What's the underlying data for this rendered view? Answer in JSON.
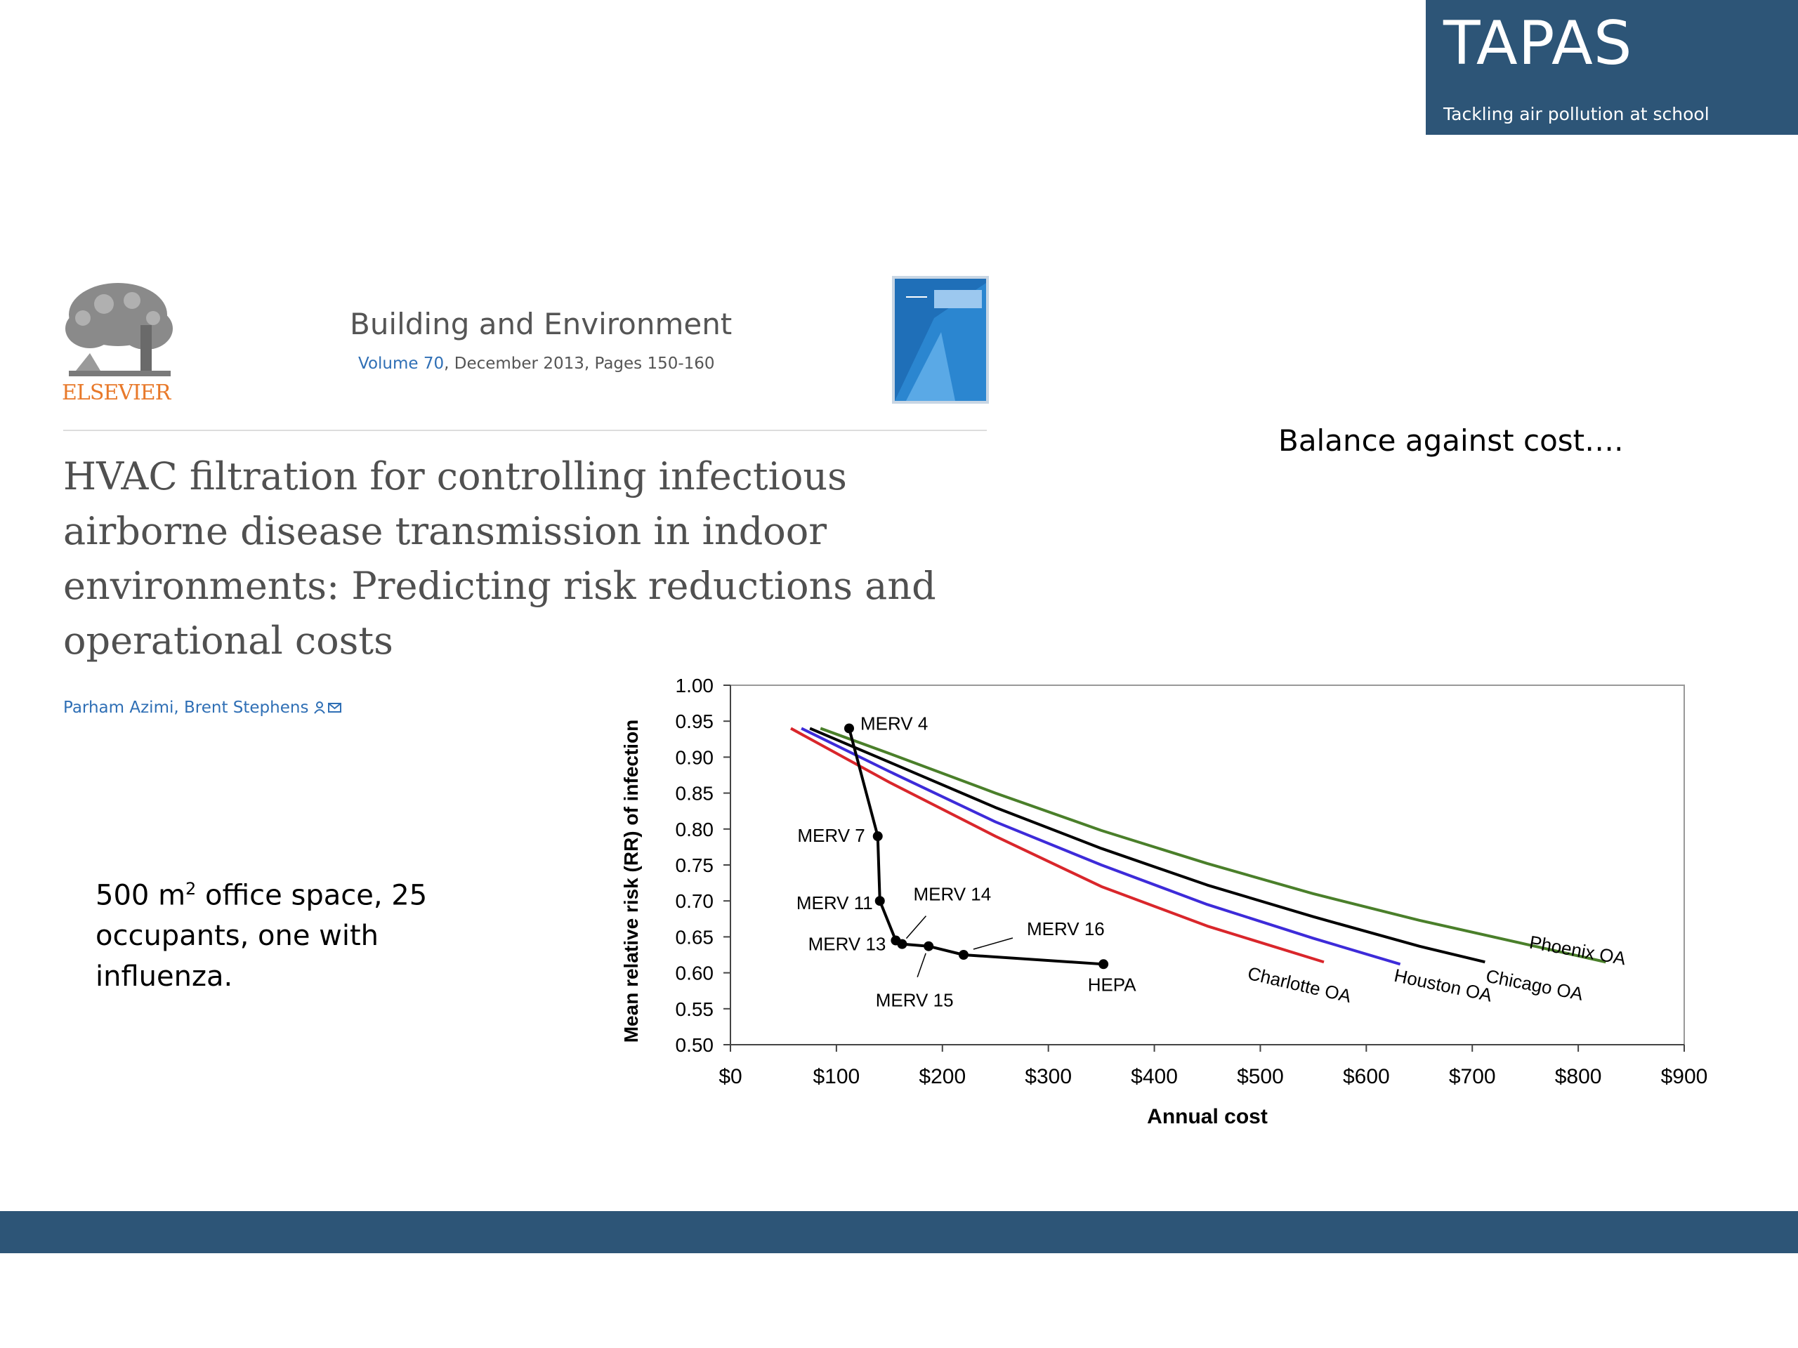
{
  "brand": {
    "name": "TAPAS",
    "tagline": "Tackling air pollution at school",
    "color": "#2d5577"
  },
  "publisher": {
    "logo_text": "ELSEVIER"
  },
  "journal": {
    "name": "Building and Environment",
    "volume_link": "Volume 70",
    "citation_rest": ", December 2013, Pages 150-160"
  },
  "paper": {
    "title": "HVAC filtration for controlling infectious airborne disease transmission in indoor environments: Predicting risk reductions and operational costs",
    "authors": "Parham Azimi, Brent Stephens"
  },
  "notes": {
    "balance": "Balance against cost….",
    "scenario_part1": "500 m",
    "scenario_sup": "2",
    "scenario_part2": " office space, 25 occupants, one with influenza."
  },
  "chart_data": {
    "type": "line",
    "xlabel": "Annual cost",
    "ylabel": "Mean relative risk (RR) of infection",
    "xlim": [
      0,
      900
    ],
    "ylim": [
      0.5,
      1.0
    ],
    "x_ticks": [
      "$0",
      "$100",
      "$200",
      "$300",
      "$400",
      "$500",
      "$600",
      "$700",
      "$800",
      "$900"
    ],
    "y_ticks": [
      "1.00",
      "0.95",
      "0.90",
      "0.85",
      "0.80",
      "0.75",
      "0.70",
      "0.65",
      "0.60",
      "0.55",
      "0.50"
    ],
    "filters": {
      "name": "",
      "color": "#000000",
      "points": [
        {
          "label": "MERV 4",
          "x": 112,
          "y": 0.94
        },
        {
          "label": "MERV 7",
          "x": 139,
          "y": 0.79
        },
        {
          "label": "MERV 11",
          "x": 141,
          "y": 0.7
        },
        {
          "label": "MERV 13",
          "x": 156,
          "y": 0.645
        },
        {
          "label": "MERV 14",
          "x": 162,
          "y": 0.64
        },
        {
          "label": "MERV 15",
          "x": 187,
          "y": 0.637
        },
        {
          "label": "MERV 16",
          "x": 220,
          "y": 0.625
        },
        {
          "label": "HEPA",
          "x": 352,
          "y": 0.612
        }
      ]
    },
    "series": [
      {
        "name": "Charlotte OA",
        "color": "#d9262b",
        "x": [
          57,
          150,
          250,
          350,
          450,
          560
        ],
        "y": [
          0.94,
          0.865,
          0.79,
          0.72,
          0.665,
          0.615
        ]
      },
      {
        "name": "Houston OA",
        "color": "#3d2bd9",
        "x": [
          67,
          150,
          250,
          350,
          450,
          550,
          632
        ],
        "y": [
          0.94,
          0.88,
          0.81,
          0.75,
          0.695,
          0.648,
          0.612
        ]
      },
      {
        "name": "Chicago OA",
        "color": "#000000",
        "x": [
          75,
          150,
          250,
          350,
          450,
          550,
          650,
          712
        ],
        "y": [
          0.94,
          0.893,
          0.83,
          0.773,
          0.722,
          0.678,
          0.637,
          0.615
        ]
      },
      {
        "name": "Phoenix OA",
        "color": "#4a7f2a",
        "x": [
          85,
          150,
          250,
          350,
          450,
          550,
          650,
          750,
          826
        ],
        "y": [
          0.94,
          0.905,
          0.85,
          0.798,
          0.752,
          0.71,
          0.673,
          0.64,
          0.615
        ]
      }
    ]
  }
}
